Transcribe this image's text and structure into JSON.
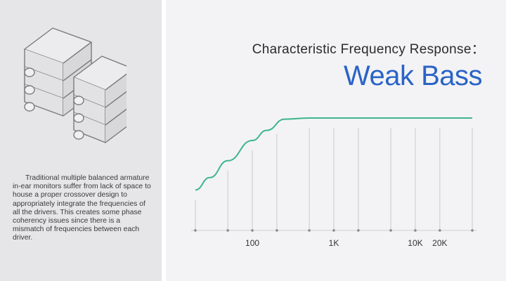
{
  "description": "Traditional multiple balanced armature in-ear monitors suffer from lack of space to house a proper crossover design to appropriately integrate the frequencies of all the drivers. This creates some phase coherency issues since there is a mismatch of frequencies between each driver.",
  "illustration_icon": "stacked-balanced-armature-drivers-icon",
  "colors": {
    "accent": "#2a63c7",
    "curve": "#3db58a",
    "gridline": "#c9c9c9",
    "left_panel": "#e6e6e8"
  },
  "chart_data": {
    "type": "line",
    "title": "Characteristic Frequency Response：",
    "subtitle": "Weak Bass",
    "xlabel": "",
    "ylabel": "",
    "x_scale": "log",
    "xlim": [
      20,
      50000
    ],
    "ylim": [
      0,
      1
    ],
    "grid": "vertical",
    "gridlines_x": [
      20,
      50,
      100,
      200,
      500,
      1000,
      2000,
      5000,
      10000,
      20000,
      50000
    ],
    "tick_labels": [
      {
        "x": 100,
        "label": "100"
      },
      {
        "x": 1000,
        "label": "1K"
      },
      {
        "x": 10000,
        "label": "10K"
      },
      {
        "x": 20000,
        "label": "20K"
      }
    ],
    "series": [
      {
        "x": [
          20,
          30,
          50,
          100,
          150,
          250,
          500,
          1000,
          5000,
          20000,
          50000
        ],
        "y": [
          0.36,
          0.47,
          0.62,
          0.8,
          0.89,
          0.99,
          1.0,
          1.0,
          1.0,
          1.0,
          1.0
        ]
      }
    ]
  }
}
